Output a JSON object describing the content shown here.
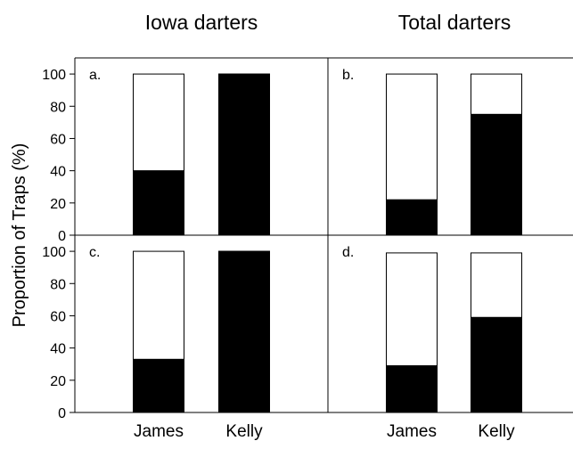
{
  "figure": {
    "column_titles": [
      "Iowa darters",
      "Total darters"
    ],
    "ylabel": "Proportion of Traps (%)",
    "categories": [
      "James",
      "Kelly"
    ],
    "y_ticks": [
      "0",
      "20",
      "40",
      "60",
      "80",
      "100"
    ],
    "bar_fill_color": "#000000",
    "bar_empty_color": "#ffffff"
  },
  "chart_data": [
    {
      "type": "bar",
      "panel_label": "a.",
      "categories": [
        "James",
        "Kelly"
      ],
      "series": [
        {
          "values": [
            40,
            100
          ]
        },
        {
          "values": [
            60,
            0
          ]
        }
      ],
      "totals": [
        100,
        100
      ],
      "ylabel": "Proportion of Traps (%)",
      "ylim": [
        0,
        110
      ],
      "stacked": true
    },
    {
      "type": "bar",
      "panel_label": "b.",
      "categories": [
        "James",
        "Kelly"
      ],
      "series": [
        {
          "values": [
            22,
            75
          ]
        },
        {
          "values": [
            78,
            25
          ]
        }
      ],
      "totals": [
        100,
        100
      ],
      "ylim": [
        0,
        110
      ],
      "stacked": true
    },
    {
      "type": "bar",
      "panel_label": "c.",
      "categories": [
        "James",
        "Kelly"
      ],
      "series": [
        {
          "values": [
            33,
            100
          ]
        },
        {
          "values": [
            67,
            0
          ]
        }
      ],
      "totals": [
        100,
        100
      ],
      "ylabel": "Proportion of Traps (%)",
      "ylim": [
        0,
        110
      ],
      "stacked": true
    },
    {
      "type": "bar",
      "panel_label": "d.",
      "categories": [
        "James",
        "Kelly"
      ],
      "series": [
        {
          "values": [
            29,
            59
          ]
        },
        {
          "values": [
            70,
            40
          ]
        }
      ],
      "totals": [
        99,
        99
      ],
      "ylim": [
        0,
        110
      ],
      "stacked": true
    }
  ]
}
